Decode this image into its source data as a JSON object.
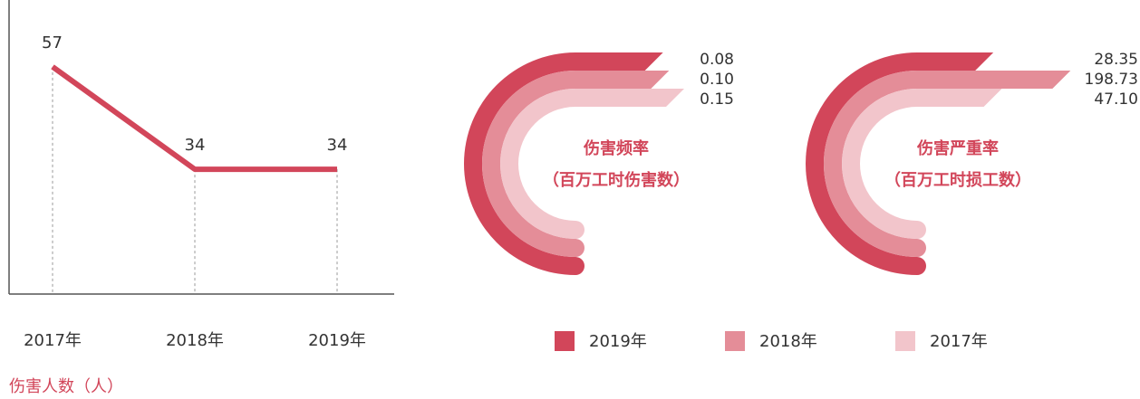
{
  "chart_data": [
    {
      "type": "line",
      "title": "伤害人数（人）",
      "categories": [
        "2017年",
        "2018年",
        "2019年"
      ],
      "values": [
        57,
        34,
        34
      ],
      "color": "#d2465a",
      "ylim": [
        6,
        72
      ]
    },
    {
      "type": "radial",
      "title": "伤害频率",
      "subtitle": "（百万工时伤害数）",
      "xlim": [
        0,
        0.3
      ],
      "series": [
        {
          "name": "2019年",
          "color": "#d2465a",
          "values": [
            0.08
          ],
          "value_labels": [
            "0.08"
          ]
        },
        {
          "name": "2018年",
          "color": "#e48d98",
          "values": [
            0.1
          ],
          "value_labels": [
            "0.10"
          ]
        },
        {
          "name": "2017年",
          "color": "#f2c5cb",
          "values": [
            0.15
          ],
          "value_labels": [
            "0.15"
          ]
        }
      ]
    },
    {
      "type": "radial",
      "title": "伤害严重率",
      "subtitle": "（百万工时损工数）",
      "xlim": [
        0,
        200
      ],
      "series": [
        {
          "color": "#d2465a",
          "values": [
            28.35
          ],
          "value_labels": [
            "28.35"
          ]
        },
        {
          "color": "#e48d98",
          "values": [
            198.73
          ],
          "value_labels": [
            "198.73"
          ]
        },
        {
          "color": "#f2c5cb",
          "values": [
            47.1
          ],
          "value_labels": [
            "47.10"
          ]
        }
      ]
    }
  ]
}
